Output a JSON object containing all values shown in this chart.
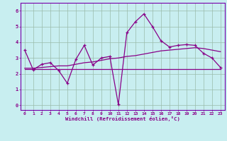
{
  "xlabel": "Windchill (Refroidissement éolien,°C)",
  "bg_color": "#c8eef0",
  "line_color": "#880088",
  "grid_color": "#99bbaa",
  "border_color": "#7700aa",
  "xlim": [
    -0.5,
    23.5
  ],
  "ylim": [
    -0.3,
    6.5
  ],
  "xticks": [
    0,
    1,
    2,
    3,
    4,
    5,
    6,
    7,
    8,
    9,
    10,
    11,
    12,
    13,
    14,
    15,
    16,
    17,
    18,
    19,
    20,
    21,
    22,
    23
  ],
  "yticks": [
    0,
    1,
    2,
    3,
    4,
    5,
    6
  ],
  "x": [
    0,
    1,
    2,
    3,
    4,
    5,
    6,
    7,
    8,
    9,
    10,
    11,
    12,
    13,
    14,
    15,
    16,
    17,
    18,
    19,
    20,
    21,
    22,
    23
  ],
  "y_line1": [
    3.5,
    2.25,
    2.6,
    2.7,
    2.2,
    1.4,
    2.9,
    3.8,
    2.55,
    3.0,
    3.1,
    0.05,
    4.6,
    5.3,
    5.8,
    5.0,
    4.1,
    3.7,
    3.8,
    3.85,
    3.8,
    3.3,
    3.0,
    2.4
  ],
  "y_trend": [
    2.35,
    2.35,
    2.4,
    2.45,
    2.5,
    2.5,
    2.6,
    2.7,
    2.75,
    2.85,
    2.95,
    3.0,
    3.1,
    3.15,
    3.25,
    3.35,
    3.45,
    3.5,
    3.55,
    3.6,
    3.65,
    3.6,
    3.5,
    3.4
  ],
  "y_flat": [
    2.3,
    2.3,
    2.3,
    2.3,
    2.3,
    2.3,
    2.3,
    2.3,
    2.3,
    2.3,
    2.3,
    2.3,
    2.3,
    2.3,
    2.3,
    2.3,
    2.3,
    2.3,
    2.3,
    2.3,
    2.3,
    2.3,
    2.3,
    2.3
  ]
}
